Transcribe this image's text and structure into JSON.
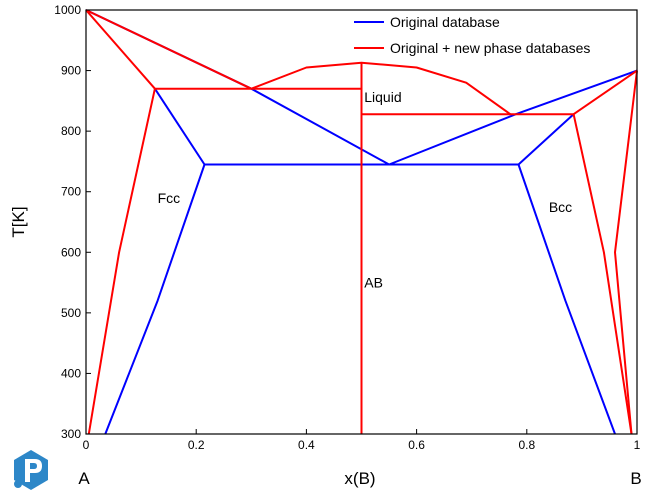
{
  "chart_data": {
    "type": "line",
    "xlabel": "x(B)",
    "ylabel": "T[K]",
    "xlim": [
      0,
      1
    ],
    "ylim": [
      300,
      1000
    ],
    "xticks": [
      "0",
      "0.2",
      "0.4",
      "0.6",
      "0.8",
      "1"
    ],
    "yticks": [
      "300",
      "400",
      "500",
      "600",
      "700",
      "800",
      "900",
      "1000"
    ],
    "end_labels": {
      "left": "A",
      "right": "B"
    },
    "legend": {
      "position": "top-right",
      "entries": [
        "Original database",
        "Original + new phase databases"
      ]
    },
    "region_labels": {
      "liquid": {
        "text": "Liquid",
        "x": 0.505,
        "y": 856,
        "color": "#000000"
      },
      "fcc": {
        "text": "Fcc",
        "x": 0.13,
        "y": 690,
        "color": "#000000"
      },
      "bcc": {
        "text": "Bcc",
        "x": 0.84,
        "y": 675,
        "color": "#000000"
      },
      "ab": {
        "text": "AB",
        "x": 0.505,
        "y": 550,
        "color": "#ff0000"
      }
    },
    "series": [
      {
        "name": "Original database",
        "color": "#0000ff",
        "segments": [
          [
            [
              0,
              1000
            ],
            [
              0.3,
              870
            ],
            [
              0.55,
              745
            ]
          ],
          [
            [
              0.55,
              745
            ],
            [
              0.78,
              828
            ],
            [
              1,
              900
            ]
          ],
          [
            [
              0.125,
              870
            ],
            [
              0.215,
              745
            ]
          ],
          [
            [
              0.035,
              300
            ],
            [
              0.13,
              520
            ],
            [
              0.215,
              745
            ]
          ],
          [
            [
              0.215,
              745
            ],
            [
              0.785,
              745
            ]
          ],
          [
            [
              0.785,
              745
            ],
            [
              0.885,
              828
            ]
          ],
          [
            [
              0.785,
              745
            ],
            [
              0.87,
              520
            ],
            [
              0.96,
              300
            ]
          ]
        ]
      },
      {
        "name": "Original + new phase databases",
        "color": "#ff0000",
        "segments": [
          [
            [
              0,
              1000
            ],
            [
              0.125,
              870
            ]
          ],
          [
            [
              0,
              1000
            ],
            [
              0.3,
              870
            ]
          ],
          [
            [
              0.005,
              300
            ],
            [
              0.06,
              600
            ],
            [
              0.125,
              870
            ]
          ],
          [
            [
              0.125,
              870
            ],
            [
              0.5,
              870
            ]
          ],
          [
            [
              0.3,
              870
            ],
            [
              0.4,
              905
            ],
            [
              0.5,
              913
            ],
            [
              0.6,
              905
            ],
            [
              0.69,
              880
            ],
            [
              0.77,
              828
            ]
          ],
          [
            [
              0.5,
              300
            ],
            [
              0.5,
              913
            ]
          ],
          [
            [
              0.5,
              828
            ],
            [
              0.885,
              828
            ]
          ],
          [
            [
              0.885,
              828
            ],
            [
              1,
              900
            ]
          ],
          [
            [
              0.885,
              828
            ],
            [
              0.94,
              600
            ],
            [
              0.99,
              300
            ]
          ],
          [
            [
              1,
              900
            ],
            [
              0.96,
              600
            ],
            [
              0.99,
              300
            ]
          ]
        ]
      }
    ]
  }
}
